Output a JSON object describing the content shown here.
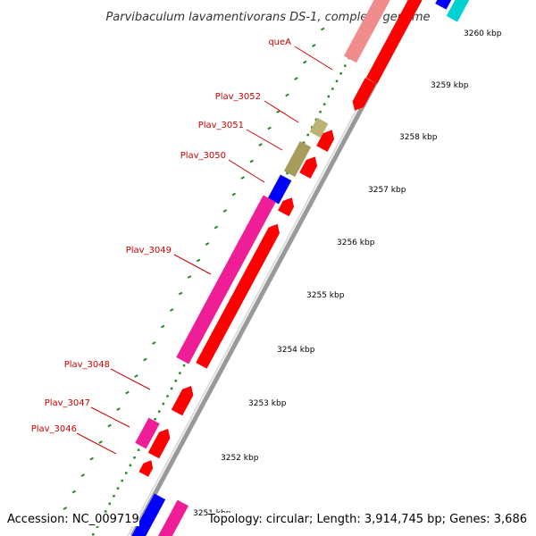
{
  "title": "Parvibaculum lavamentivorans DS-1, complete genome",
  "footer": {
    "accession": "Accession: NC_009719",
    "summary": "Topology: circular; Length: 3,914,745 bp; Genes: 3,686"
  },
  "colors": {
    "background": "#ffffff",
    "backbone": "#999999",
    "cds_red": "#ff0000",
    "queA_pink": "#f08c8c",
    "plav3052_tan": "#bdb276",
    "plav3051_olive": "#a89c5a",
    "plav3050_blue": "#0000ff",
    "plav3049_magenta": "#f01e96",
    "plav3047_magenta": "#f01e96",
    "cyan": "#00d2d2",
    "label_red": "#cc0000",
    "tick_green": "#228b22"
  },
  "kbp_ticks": [
    "3251 kbp",
    "3252 kbp",
    "3253 kbp",
    "3254 kbp",
    "3255 kbp",
    "3256 kbp",
    "3257 kbp",
    "3258 kbp",
    "3259 kbp",
    "3260 kbp"
  ],
  "genes": [
    {
      "name": "queA",
      "color": "#f08c8c"
    },
    {
      "name": "Plav_3052",
      "color": "#bdb276"
    },
    {
      "name": "Plav_3051",
      "color": "#a89c5a"
    },
    {
      "name": "Plav_3050",
      "color": "#0000ff"
    },
    {
      "name": "Plav_3049",
      "color": "#f01e96"
    },
    {
      "name": "Plav_3048",
      "color": "#ff0000"
    },
    {
      "name": "Plav_3047",
      "color": "#f01e96"
    },
    {
      "name": "Plav_3046",
      "color": "#ff0000"
    }
  ]
}
